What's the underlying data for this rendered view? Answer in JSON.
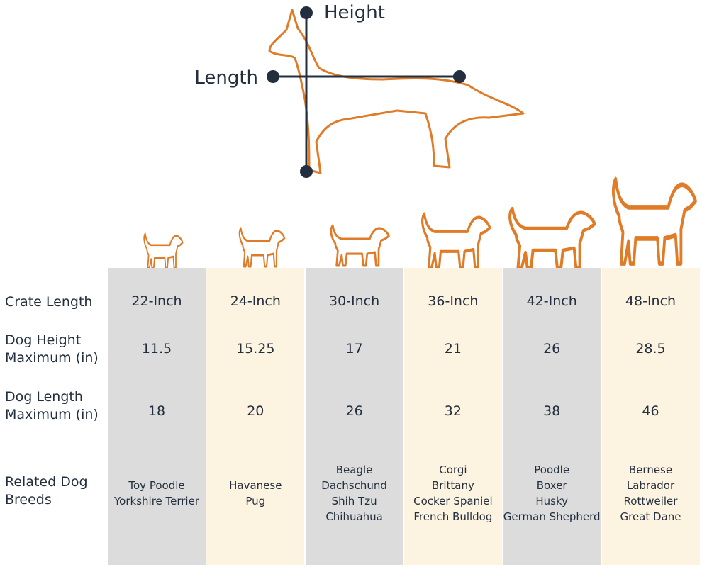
{
  "diagram": {
    "height_label": "Height",
    "length_label": "Length"
  },
  "table": {
    "row_headers": [
      "Crate Length",
      "Dog Height Maximum (in)",
      "Dog Length Maximum (in)",
      "Related Dog Breeds"
    ],
    "columns": [
      {
        "crate_length": "22-Inch",
        "dog_height_max": 11.5,
        "dog_length_max": 18,
        "breeds": [
          "Toy Poodle",
          "Yorkshire Terrier"
        ]
      },
      {
        "crate_length": "24-Inch",
        "dog_height_max": 15.25,
        "dog_length_max": 20,
        "breeds": [
          "Havanese",
          "Pug"
        ]
      },
      {
        "crate_length": "30-Inch",
        "dog_height_max": 17,
        "dog_length_max": 26,
        "breeds": [
          "Beagle",
          "Dachschund",
          "Shih Tzu",
          "Chihuahua"
        ]
      },
      {
        "crate_length": "36-Inch",
        "dog_height_max": 21,
        "dog_length_max": 32,
        "breeds": [
          "Corgi",
          "Brittany",
          "Cocker Spaniel",
          "French Bulldog"
        ]
      },
      {
        "crate_length": "42-Inch",
        "dog_height_max": 26,
        "dog_length_max": 38,
        "breeds": [
          "Poodle",
          "Boxer",
          "Husky",
          "German Shepherd"
        ]
      },
      {
        "crate_length": "48-Inch",
        "dog_height_max": 28.5,
        "dog_length_max": 46,
        "breeds": [
          "Bernese",
          "Labrador",
          "Rottweiler",
          "Great Dane"
        ]
      }
    ]
  }
}
